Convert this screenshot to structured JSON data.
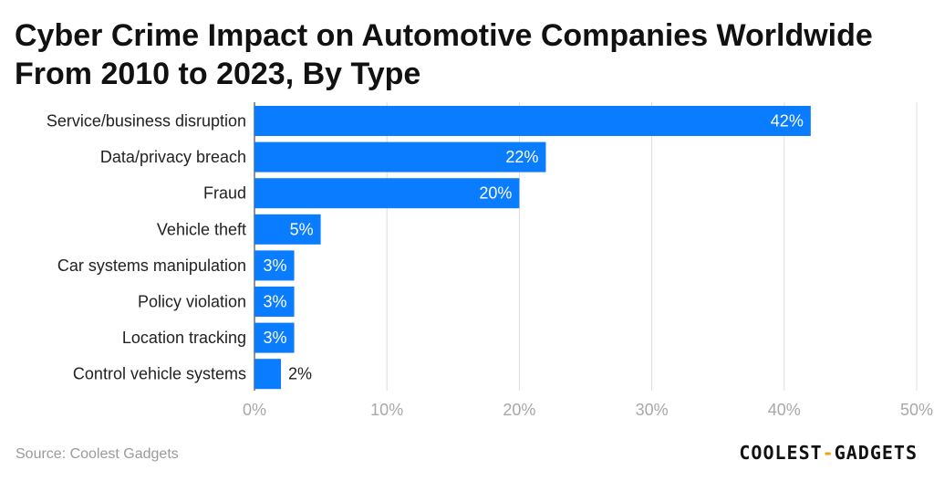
{
  "title": "Cyber Crime Impact on Automotive Companies Worldwide From 2010 to 2023, By Type",
  "source": "Source: Coolest Gadgets",
  "logo": {
    "left": "COOLEST",
    "sep": "-",
    "right": "GADGETS"
  },
  "colors": {
    "bar": "#0a7cff",
    "label_inside": "#ffffff",
    "label_outside": "#222222"
  },
  "chart_data": {
    "type": "bar",
    "orientation": "horizontal",
    "title": "Cyber Crime Impact on Automotive Companies Worldwide From 2010 to 2023, By Type",
    "categories": [
      "Service/business disruption",
      "Data/privacy breach",
      "Fraud",
      "Vehicle theft",
      "Car systems manipulation",
      "Policy violation",
      "Location tracking",
      "Control vehicle systems"
    ],
    "values": [
      42,
      22,
      20,
      5,
      3,
      3,
      3,
      2
    ],
    "value_labels": [
      "42%",
      "22%",
      "20%",
      "5%",
      "3%",
      "3%",
      "3%",
      "2%"
    ],
    "xlim": [
      0,
      50
    ],
    "xticks": [
      0,
      10,
      20,
      30,
      40,
      50
    ],
    "xtick_labels": [
      "0%",
      "10%",
      "20%",
      "30%",
      "40%",
      "50%"
    ],
    "xlabel": "",
    "ylabel": "",
    "grid": true
  }
}
